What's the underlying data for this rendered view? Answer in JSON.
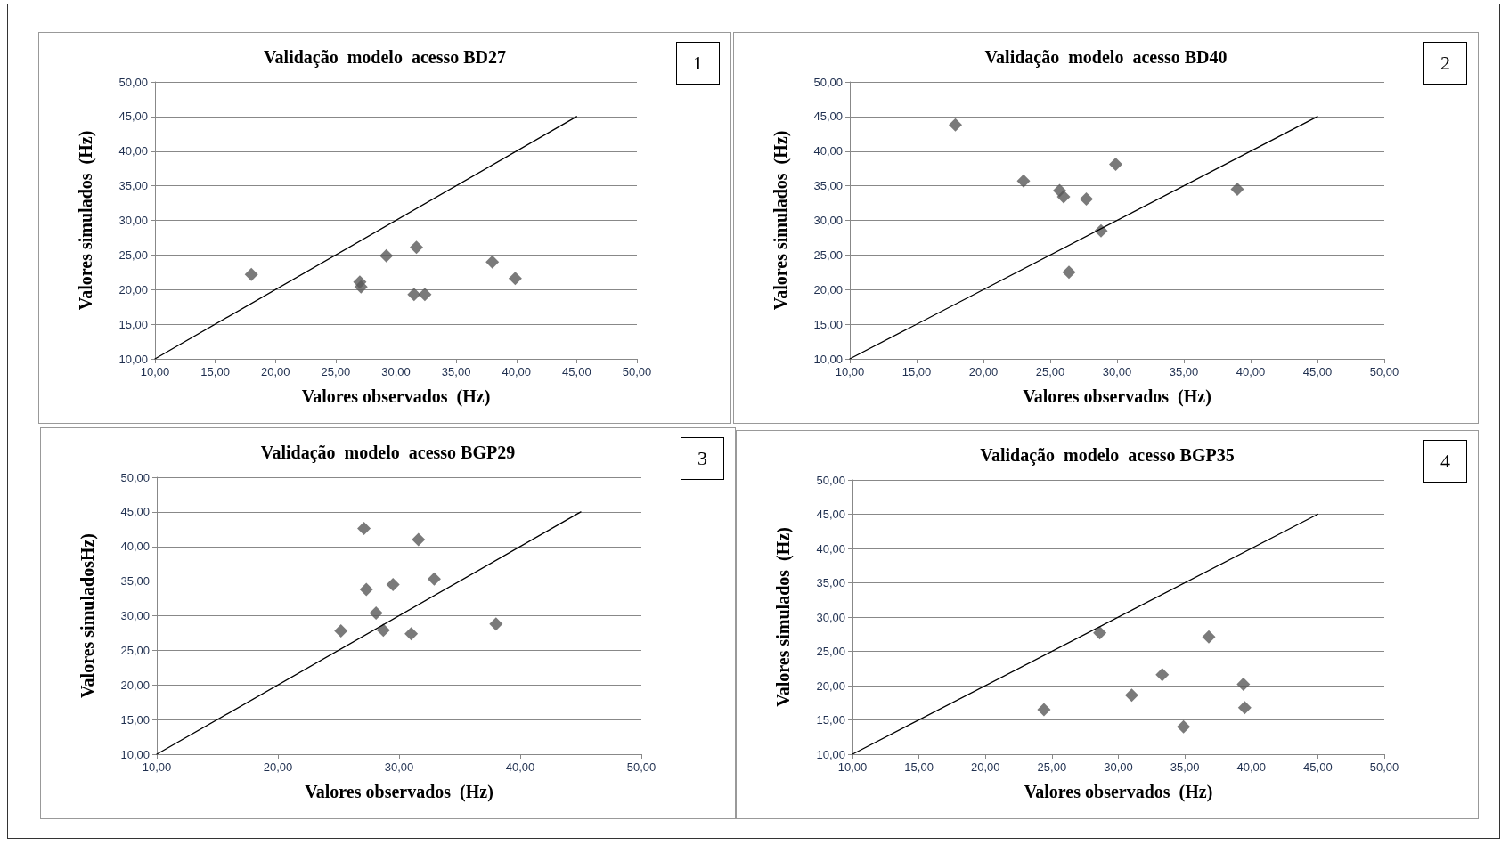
{
  "chart_data": [
    {
      "type": "scatter",
      "title": "Validação  modelo  acesso BD27",
      "xlabel": "Valores observados  (Hz)",
      "ylabel": "Valores simulados  (Hz)",
      "annotations": [
        "1"
      ],
      "marker": "diamond",
      "grid": "y",
      "xlim": [
        10,
        50
      ],
      "xticks": [
        {
          "value": 10,
          "label": "10,00"
        },
        {
          "value": 15,
          "label": "15,00"
        },
        {
          "value": 20,
          "label": "20,00"
        },
        {
          "value": 25,
          "label": "25,00"
        },
        {
          "value": 30,
          "label": "30,00"
        },
        {
          "value": 35,
          "label": "35,00"
        },
        {
          "value": 40,
          "label": "40,00"
        },
        {
          "value": 45,
          "label": "45,00"
        },
        {
          "value": 50,
          "label": "50,00"
        }
      ],
      "ylim": [
        10,
        50
      ],
      "yticks": [
        {
          "value": 10,
          "label": "10,00"
        },
        {
          "value": 15,
          "label": "15,00"
        },
        {
          "value": 20,
          "label": "20,00"
        },
        {
          "value": 25,
          "label": "25,00"
        },
        {
          "value": 30,
          "label": "30,00"
        },
        {
          "value": 35,
          "label": "35,00"
        },
        {
          "value": 40,
          "label": "40,00"
        },
        {
          "value": 45,
          "label": "45,00"
        },
        {
          "value": 50,
          "label": "50,00"
        }
      ],
      "series": [
        {
          "color": "#595959",
          "x": [
            18.0,
            27.0,
            27.1,
            29.2,
            31.7,
            31.5,
            32.4,
            38.0,
            39.9
          ],
          "values": [
            22.2,
            21.1,
            20.4,
            24.9,
            26.1,
            19.3,
            19.3,
            24.0,
            21.6
          ]
        },
        {
          "type": "line",
          "marker": "none",
          "color": "#000000",
          "x": [
            10,
            45
          ],
          "values": [
            10,
            45
          ]
        }
      ]
    },
    {
      "type": "scatter",
      "title": "Validação  modelo  acesso BD40",
      "xlabel": "Valores observados  (Hz)",
      "ylabel": "Valores simulados  (Hz)",
      "annotations": [
        "2"
      ],
      "marker": "diamond",
      "grid": "y",
      "xlim": [
        10,
        50
      ],
      "xticks": [
        {
          "value": 10,
          "label": "10,00"
        },
        {
          "value": 15,
          "label": "15,00"
        },
        {
          "value": 20,
          "label": "20,00"
        },
        {
          "value": 25,
          "label": "25,00"
        },
        {
          "value": 30,
          "label": "30,00"
        },
        {
          "value": 35,
          "label": "35,00"
        },
        {
          "value": 40,
          "label": "40,00"
        },
        {
          "value": 45,
          "label": "45,00"
        },
        {
          "value": 50,
          "label": "50,00"
        }
      ],
      "ylim": [
        10,
        50
      ],
      "yticks": [
        {
          "value": 10,
          "label": "10,00"
        },
        {
          "value": 15,
          "label": "15,00"
        },
        {
          "value": 20,
          "label": "20,00"
        },
        {
          "value": 25,
          "label": "25,00"
        },
        {
          "value": 30,
          "label": "30,00"
        },
        {
          "value": 35,
          "label": "35,00"
        },
        {
          "value": 40,
          "label": "40,00"
        },
        {
          "value": 45,
          "label": "45,00"
        },
        {
          "value": 50,
          "label": "50,00"
        }
      ],
      "series": [
        {
          "color": "#595959",
          "x": [
            17.9,
            23.0,
            25.7,
            26.0,
            27.7,
            29.9,
            28.8,
            26.4,
            39.0
          ],
          "values": [
            43.8,
            35.7,
            34.3,
            33.4,
            33.1,
            38.1,
            28.5,
            22.5,
            34.5
          ]
        },
        {
          "type": "line",
          "marker": "none",
          "color": "#000000",
          "x": [
            10,
            45
          ],
          "values": [
            10,
            45
          ]
        }
      ]
    },
    {
      "type": "scatter",
      "title": "Validação  modelo  acesso BGP29",
      "xlabel": "Valores observados  (Hz)",
      "ylabel": "Valores simuladosHz)",
      "annotations": [
        "3"
      ],
      "marker": "diamond",
      "grid": "y",
      "xlim": [
        10,
        50
      ],
      "xticks": [
        {
          "value": 10,
          "label": "10,00"
        },
        {
          "value": 20,
          "label": "20,00"
        },
        {
          "value": 30,
          "label": "30,00"
        },
        {
          "value": 40,
          "label": "40,00"
        },
        {
          "value": 50,
          "label": "50,00"
        }
      ],
      "ylim": [
        10,
        50
      ],
      "yticks": [
        {
          "value": 10,
          "label": "10,00"
        },
        {
          "value": 15,
          "label": "15,00"
        },
        {
          "value": 20,
          "label": "20,00"
        },
        {
          "value": 25,
          "label": "25,00"
        },
        {
          "value": 30,
          "label": "30,00"
        },
        {
          "value": 35,
          "label": "35,00"
        },
        {
          "value": 40,
          "label": "40,00"
        },
        {
          "value": 45,
          "label": "45,00"
        },
        {
          "value": 50,
          "label": "50,00"
        }
      ],
      "series": [
        {
          "color": "#595959",
          "x": [
            27.1,
            31.6,
            27.3,
            29.5,
            32.9,
            28.1,
            25.2,
            28.7,
            31.0,
            38.0
          ],
          "values": [
            42.6,
            41.0,
            33.8,
            34.5,
            35.3,
            30.4,
            27.8,
            27.9,
            27.4,
            28.8
          ]
        },
        {
          "type": "line",
          "marker": "none",
          "color": "#000000",
          "x": [
            10,
            45
          ],
          "values": [
            10,
            45
          ]
        }
      ]
    },
    {
      "type": "scatter",
      "title": "Validação  modelo  acesso BGP35",
      "xlabel": "Valores observados  (Hz)",
      "ylabel": "Valores simulados  (Hz)",
      "annotations": [
        "4"
      ],
      "marker": "diamond",
      "grid": "y",
      "xlim": [
        10,
        50
      ],
      "xticks": [
        {
          "value": 10,
          "label": "10,00"
        },
        {
          "value": 15,
          "label": "15,00"
        },
        {
          "value": 20,
          "label": "20,00"
        },
        {
          "value": 25,
          "label": "25,00"
        },
        {
          "value": 30,
          "label": "30,00"
        },
        {
          "value": 35,
          "label": "35,00"
        },
        {
          "value": 40,
          "label": "40,00"
        },
        {
          "value": 45,
          "label": "45,00"
        },
        {
          "value": 50,
          "label": "50,00"
        }
      ],
      "ylim": [
        10,
        50
      ],
      "yticks": [
        {
          "value": 10,
          "label": "10,00"
        },
        {
          "value": 15,
          "label": "15,00"
        },
        {
          "value": 20,
          "label": "20,00"
        },
        {
          "value": 25,
          "label": "25,00"
        },
        {
          "value": 30,
          "label": "30,00"
        },
        {
          "value": 35,
          "label": "35,00"
        },
        {
          "value": 40,
          "label": "40,00"
        },
        {
          "value": 45,
          "label": "45,00"
        },
        {
          "value": 50,
          "label": "50,00"
        }
      ],
      "series": [
        {
          "color": "#595959",
          "x": [
            24.4,
            28.6,
            31.0,
            33.3,
            34.9,
            36.8,
            39.4,
            39.5
          ],
          "values": [
            16.5,
            27.7,
            18.6,
            21.6,
            14.0,
            27.1,
            20.2,
            16.8
          ]
        },
        {
          "type": "line",
          "marker": "none",
          "color": "#000000",
          "x": [
            10,
            45
          ],
          "values": [
            10,
            45
          ]
        }
      ]
    }
  ]
}
